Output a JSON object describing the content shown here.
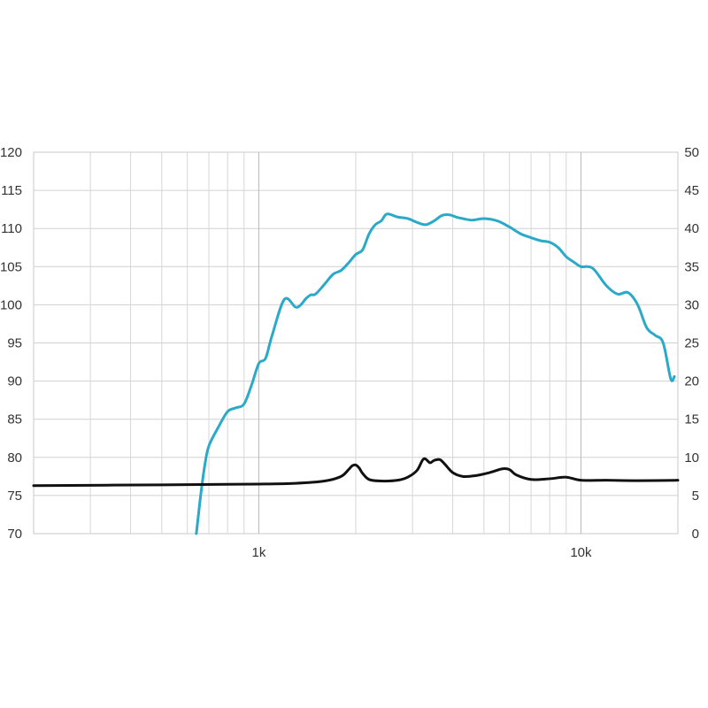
{
  "chart_data": {
    "type": "line",
    "title": "",
    "xlabel": "",
    "ylabel": "",
    "x_scale": "log",
    "xlim": [
      200,
      20000
    ],
    "ylim": [
      70,
      120
    ],
    "y2lim": [
      0,
      50
    ],
    "grid": true,
    "legend": "none",
    "x_tick_labels": [
      {
        "value": 1000,
        "label": "1k"
      },
      {
        "value": 10000,
        "label": "10k"
      }
    ],
    "y_ticks": [
      "70",
      "75",
      "80",
      "85",
      "90",
      "95",
      "100",
      "105",
      "110",
      "115",
      "120"
    ],
    "y2_ticks": [
      "0",
      "5",
      "10",
      "15",
      "20",
      "25",
      "30",
      "35",
      "40",
      "45",
      "50"
    ],
    "series": [
      {
        "axis": "left",
        "color": "#2aa9c9",
        "x": [
          640,
          660,
          680,
          700,
          750,
          800,
          850,
          900,
          950,
          1000,
          1050,
          1100,
          1200,
          1300,
          1350,
          1400,
          1450,
          1500,
          1600,
          1700,
          1800,
          1900,
          2000,
          2100,
          2200,
          2300,
          2400,
          2500,
          2700,
          2900,
          3100,
          3300,
          3500,
          3700,
          3900,
          4100,
          4300,
          4600,
          5000,
          5500,
          6000,
          6500,
          7000,
          7500,
          8000,
          8500,
          9000,
          9500,
          10000,
          10500,
          11000,
          12000,
          13000,
          14000,
          15000,
          16000,
          17000,
          18000,
          19000,
          19500
        ],
        "values": [
          70,
          75,
          79,
          81.5,
          84,
          86,
          86.5,
          87,
          89.5,
          92.3,
          93,
          96,
          100.7,
          99.7,
          100,
          100.8,
          101.3,
          101.4,
          102.7,
          104,
          104.5,
          105.5,
          106.6,
          107.2,
          109.3,
          110.5,
          111,
          111.9,
          111.5,
          111.3,
          110.8,
          110.5,
          111,
          111.7,
          111.8,
          111.5,
          111.3,
          111.1,
          111.3,
          111,
          110.2,
          109.3,
          108.8,
          108.4,
          108.2,
          107.5,
          106.3,
          105.6,
          105,
          105,
          104.6,
          102.5,
          101.4,
          101.6,
          100,
          97,
          96,
          95,
          90.3,
          90.6
        ]
      },
      {
        "axis": "right",
        "color": "#111111",
        "x": [
          200,
          500,
          1000,
          1300,
          1600,
          1800,
          1900,
          1950,
          2000,
          2050,
          2100,
          2200,
          2400,
          2700,
          2900,
          3100,
          3250,
          3400,
          3500,
          3650,
          3800,
          4000,
          4300,
          4700,
          5200,
          5700,
          6000,
          6300,
          7000,
          8000,
          9000,
          10000,
          12000,
          15000,
          20000
        ],
        "values": [
          6.3,
          6.4,
          6.5,
          6.6,
          6.9,
          7.5,
          8.4,
          8.9,
          9.0,
          8.6,
          7.9,
          7.1,
          6.9,
          7.0,
          7.4,
          8.3,
          9.8,
          9.3,
          9.6,
          9.7,
          9.0,
          8.0,
          7.5,
          7.6,
          8.0,
          8.5,
          8.4,
          7.7,
          7.1,
          7.2,
          7.4,
          7.0,
          7.0,
          6.95,
          7.0
        ]
      }
    ]
  }
}
